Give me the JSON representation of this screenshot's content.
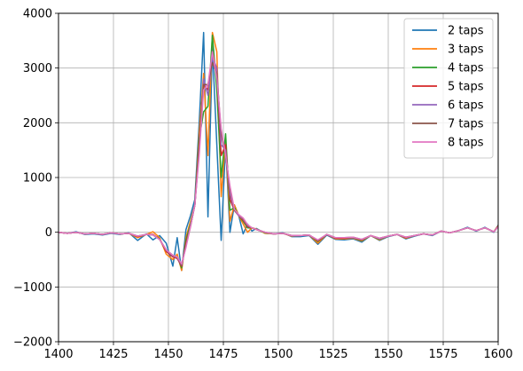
{
  "chart_data": {
    "type": "line",
    "title": "",
    "xlabel": "",
    "ylabel": "",
    "xlim": [
      1400,
      1600
    ],
    "ylim": [
      -2000,
      4000
    ],
    "xticks": [
      1400,
      1425,
      1450,
      1475,
      1500,
      1525,
      1550,
      1575,
      1600
    ],
    "yticks": [
      -2000,
      -1000,
      0,
      1000,
      2000,
      3000,
      4000
    ],
    "grid": true,
    "legend_position": "top-right",
    "x": [
      1400,
      1404,
      1408,
      1412,
      1416,
      1420,
      1424,
      1428,
      1432,
      1436,
      1440,
      1443,
      1446,
      1449,
      1452,
      1454,
      1456,
      1458,
      1460,
      1462,
      1464,
      1466,
      1468,
      1470,
      1472,
      1474,
      1476,
      1478,
      1480,
      1482,
      1484,
      1486,
      1488,
      1490,
      1494,
      1498,
      1502,
      1506,
      1510,
      1514,
      1518,
      1522,
      1526,
      1530,
      1534,
      1538,
      1542,
      1546,
      1550,
      1554,
      1558,
      1562,
      1566,
      1570,
      1574,
      1578,
      1582,
      1586,
      1590,
      1594,
      1598,
      1600
    ],
    "series": [
      {
        "name": "2 taps",
        "color": "#1f77b4",
        "values": [
          0,
          -20,
          10,
          -40,
          -30,
          -50,
          -20,
          -40,
          -10,
          -150,
          -30,
          -140,
          -60,
          -200,
          -620,
          -100,
          -700,
          50,
          300,
          600,
          2000,
          3650,
          280,
          3400,
          1600,
          -150,
          1600,
          0,
          500,
          300,
          -30,
          150,
          20,
          70,
          -20,
          -30,
          -10,
          -80,
          -80,
          -60,
          -220,
          -50,
          -130,
          -140,
          -120,
          -180,
          -60,
          -150,
          -80,
          -40,
          -120,
          -70,
          -30,
          -60,
          20,
          -10,
          30,
          90,
          20,
          90,
          0,
          130
        ]
      },
      {
        "name": "3 taps",
        "color": "#ff7f0e",
        "values": [
          0,
          -20,
          0,
          -30,
          -20,
          -40,
          -10,
          -30,
          -20,
          -100,
          -40,
          10,
          -100,
          -400,
          -500,
          -400,
          -700,
          -100,
          200,
          500,
          1800,
          2900,
          1400,
          3650,
          3300,
          650,
          1700,
          200,
          500,
          300,
          150,
          0,
          80,
          60,
          -20,
          -30,
          -20,
          -70,
          -60,
          -50,
          -200,
          -40,
          -120,
          -120,
          -110,
          -160,
          -60,
          -140,
          -70,
          -40,
          -110,
          -60,
          -30,
          -50,
          20,
          -10,
          30,
          80,
          30,
          80,
          10,
          120
        ]
      },
      {
        "name": "4 taps",
        "color": "#2ca02c",
        "values": [
          0,
          -20,
          0,
          -30,
          -20,
          -40,
          -10,
          -30,
          -20,
          -80,
          -40,
          -50,
          -120,
          -350,
          -450,
          -450,
          -650,
          -150,
          150,
          500,
          1700,
          2200,
          2300,
          3600,
          2600,
          1000,
          1800,
          400,
          450,
          300,
          200,
          80,
          80,
          50,
          -10,
          -30,
          -20,
          -60,
          -60,
          -50,
          -170,
          -40,
          -110,
          -110,
          -100,
          -150,
          -60,
          -130,
          -70,
          -40,
          -100,
          -60,
          -30,
          -50,
          20,
          -10,
          30,
          80,
          30,
          80,
          10,
          110
        ]
      },
      {
        "name": "5 taps",
        "color": "#d62728",
        "values": [
          0,
          -20,
          0,
          -30,
          -20,
          -40,
          -10,
          -30,
          -20,
          -80,
          -40,
          -40,
          -130,
          -350,
          -450,
          -480,
          -620,
          -200,
          100,
          500,
          1600,
          2700,
          2600,
          3300,
          2900,
          1400,
          1600,
          600,
          400,
          300,
          220,
          100,
          80,
          50,
          0,
          -30,
          -20,
          -60,
          -60,
          -50,
          -160,
          -40,
          -110,
          -110,
          -100,
          -140,
          -60,
          -120,
          -70,
          -40,
          -100,
          -60,
          -30,
          -50,
          20,
          -10,
          30,
          80,
          30,
          80,
          10,
          110
        ]
      },
      {
        "name": "6 taps",
        "color": "#9467bd",
        "values": [
          0,
          -20,
          0,
          -30,
          -20,
          -40,
          -10,
          -30,
          -20,
          -70,
          -40,
          -50,
          -130,
          -330,
          -430,
          -470,
          -600,
          -250,
          100,
          500,
          1500,
          2800,
          2500,
          3200,
          3000,
          1600,
          1500,
          700,
          400,
          300,
          240,
          120,
          80,
          50,
          0,
          -30,
          -20,
          -60,
          -60,
          -50,
          -150,
          -40,
          -100,
          -100,
          -100,
          -130,
          -60,
          -120,
          -70,
          -40,
          -90,
          -60,
          -30,
          -50,
          20,
          -10,
          30,
          80,
          30,
          80,
          10,
          100
        ]
      },
      {
        "name": "7 taps",
        "color": "#8c564b",
        "values": [
          0,
          -20,
          0,
          -30,
          -20,
          -40,
          -10,
          -30,
          -20,
          -70,
          -40,
          -50,
          -130,
          -320,
          -420,
          -460,
          -590,
          -250,
          100,
          500,
          1500,
          2700,
          2700,
          3100,
          2900,
          1800,
          1400,
          800,
          400,
          320,
          250,
          130,
          80,
          50,
          0,
          -30,
          -20,
          -60,
          -60,
          -50,
          -150,
          -40,
          -100,
          -100,
          -90,
          -130,
          -60,
          -110,
          -70,
          -40,
          -90,
          -60,
          -30,
          -50,
          20,
          -10,
          30,
          80,
          30,
          80,
          10,
          100
        ]
      },
      {
        "name": "8 taps",
        "color": "#e377c2",
        "values": [
          0,
          -20,
          0,
          -30,
          -20,
          -40,
          -10,
          -30,
          -20,
          -70,
          -40,
          -50,
          -130,
          -320,
          -420,
          -450,
          -580,
          -280,
          100,
          500,
          1400,
          2600,
          2700,
          3300,
          2800,
          1900,
          1400,
          850,
          420,
          320,
          260,
          140,
          80,
          50,
          0,
          -30,
          -20,
          -60,
          -60,
          -50,
          -140,
          -40,
          -100,
          -100,
          -90,
          -130,
          -60,
          -110,
          -70,
          -40,
          -90,
          -60,
          -30,
          -50,
          20,
          -10,
          30,
          80,
          30,
          80,
          10,
          100
        ]
      }
    ]
  }
}
